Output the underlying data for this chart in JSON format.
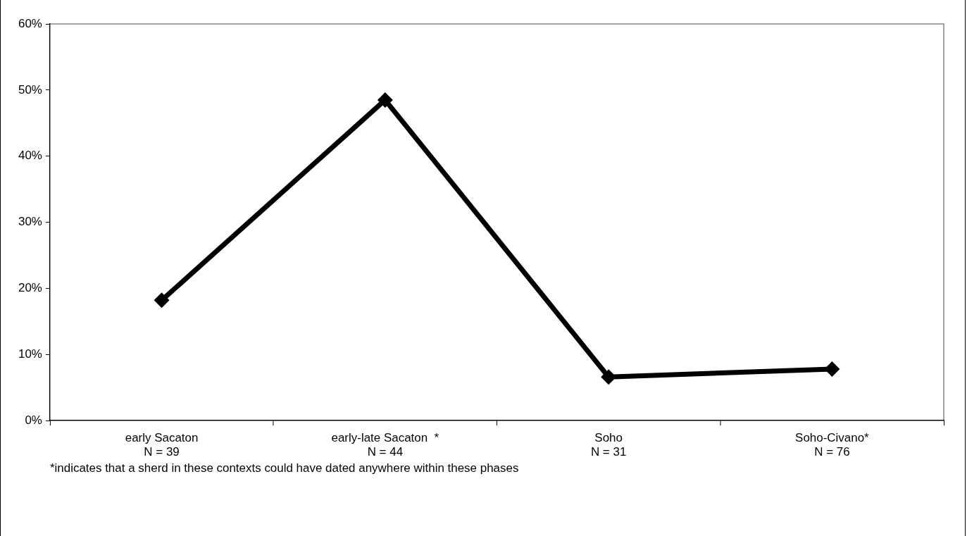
{
  "chart_data": {
    "type": "line",
    "categories": [
      "early Sacaton\nN = 39",
      "early-late Sacaton  *\nN = 44",
      "Soho\nN = 31",
      "Soho-Civano*\nN = 76"
    ],
    "series": [
      {
        "color": "#000000",
        "values": [
          18.2,
          48.5,
          6.6,
          7.8
        ]
      }
    ],
    "ylim": [
      0,
      60
    ],
    "yticks": [
      {
        "value": 0,
        "label": "0%"
      },
      {
        "value": 10,
        "label": "10%"
      },
      {
        "value": 20,
        "label": "20%"
      },
      {
        "value": 30,
        "label": "30%"
      },
      {
        "value": 40,
        "label": "40%"
      },
      {
        "value": 50,
        "label": "50%"
      },
      {
        "value": 60,
        "label": "60%"
      }
    ],
    "grid": false,
    "legend": false,
    "marker": "diamond",
    "line_style": "solid",
    "annotations": [
      "*indicates that a sherd in these contexts could have dated anywhere within these phases"
    ]
  }
}
